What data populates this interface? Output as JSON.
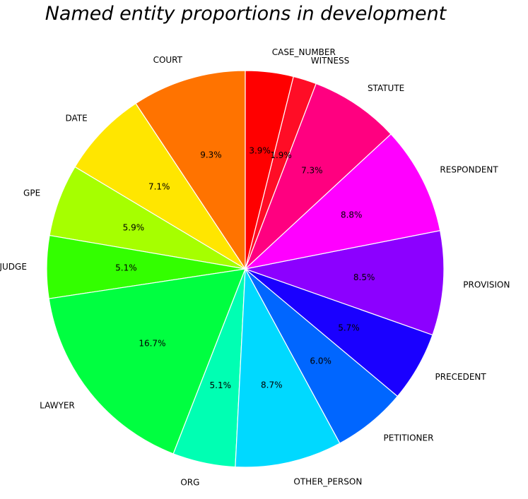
{
  "chart_data": {
    "type": "pie",
    "title": "Named entity proportions in development",
    "start_angle_deg": 90,
    "direction": "counterclockwise",
    "slices": [
      {
        "label": "COURT",
        "value": 9.3,
        "pct_label": "9.3%",
        "color": "#FF7300"
      },
      {
        "label": "DATE",
        "value": 7.1,
        "pct_label": "7.1%",
        "color": "#FFE600"
      },
      {
        "label": "GPE",
        "value": 5.9,
        "pct_label": "5.9%",
        "color": "#A6FF00"
      },
      {
        "label": "JUDGE",
        "value": 5.1,
        "pct_label": "5.1%",
        "color": "#33FF00"
      },
      {
        "label": "LAWYER",
        "value": 16.7,
        "pct_label": "16.7%",
        "color": "#00FF40"
      },
      {
        "label": "ORG",
        "value": 5.1,
        "pct_label": "5.1%",
        "color": "#00FFB3"
      },
      {
        "label": "OTHER_PERSON",
        "value": 8.7,
        "pct_label": "8.7%",
        "color": "#00D9FF"
      },
      {
        "label": "PETITIONER",
        "value": 6.0,
        "pct_label": "6.0%",
        "color": "#0066FF"
      },
      {
        "label": "PRECEDENT",
        "value": 5.7,
        "pct_label": "5.7%",
        "color": "#1A00FF"
      },
      {
        "label": "PROVISION",
        "value": 8.5,
        "pct_label": "8.5%",
        "color": "#8C00FF"
      },
      {
        "label": "RESPONDENT",
        "value": 8.8,
        "pct_label": "8.8%",
        "color": "#FF00FF"
      },
      {
        "label": "STATUTE",
        "value": 7.3,
        "pct_label": "7.3%",
        "color": "#FF0080"
      },
      {
        "label": "WITNESS",
        "value": 1.9,
        "pct_label": "1.9%",
        "color": "#FF0D26"
      },
      {
        "label": "CASE_NUMBER",
        "value": 3.9,
        "pct_label": "3.9%",
        "color": "#FF0000"
      }
    ]
  }
}
